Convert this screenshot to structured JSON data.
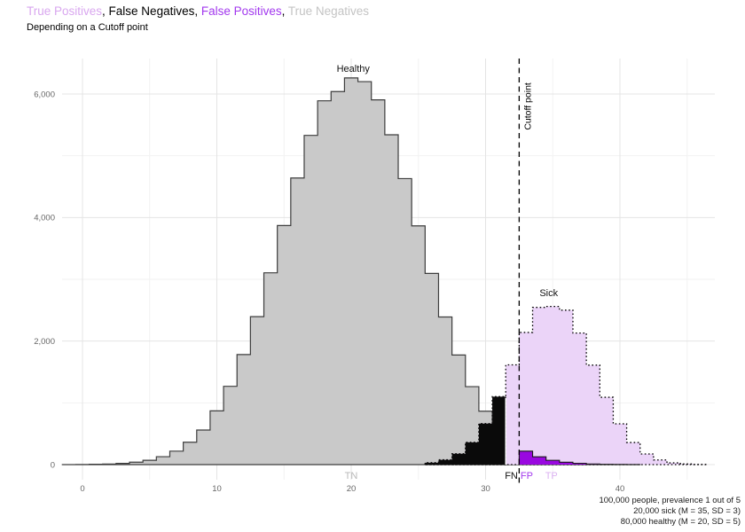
{
  "title": {
    "segments": [
      {
        "text": "True Positives",
        "color": "#D9A7EF"
      },
      {
        "text": ", ",
        "color": "#000000"
      },
      {
        "text": "False Negatives",
        "color": "#000000"
      },
      {
        "text": ", ",
        "color": "#000000"
      },
      {
        "text": "False Positives",
        "color": "#A238EE"
      },
      {
        "text": ", ",
        "color": "#000000"
      },
      {
        "text": "True Negatives",
        "color": "#C4C4C4"
      }
    ],
    "subtitle": "Depending on a Cutoff point"
  },
  "caption": {
    "lines": [
      "100,000 people, prevalence 1 out of 5",
      "20,000 sick (M = 35, SD = 3)",
      "80,000 healthy (M = 20, SD = 5)"
    ]
  },
  "chart_data": {
    "type": "area",
    "title": "True Positives, False Negatives, False Positives, True Negatives",
    "subtitle": "Depending on a Cutoff point",
    "x_axis": {
      "major_ticks": [
        0,
        10,
        20,
        30,
        40
      ],
      "labels": [
        "0",
        "10",
        "20",
        "30",
        "40"
      ],
      "minor_ticks": [
        5,
        15,
        25,
        35,
        45
      ],
      "range": [
        -1.5,
        46.5
      ]
    },
    "y_axis": {
      "major_ticks": [
        0,
        2000,
        4000,
        6000
      ],
      "labels": [
        "0",
        "2,000",
        "4,000",
        "6,000"
      ],
      "minor_ticks": [
        1000,
        3000,
        5000
      ],
      "range": [
        0,
        6590
      ]
    },
    "grid": true,
    "legend_position": "none",
    "cutoff": 32.5,
    "cutoff_label": "Cutoff point",
    "series": [
      {
        "name": "healthy",
        "label": "Healthy",
        "n": 80000,
        "mean": 20,
        "sd": 5,
        "bin_width": 1,
        "start_center": -1,
        "values": [
          1,
          3,
          5,
          10,
          20,
          40,
          70,
          128,
          218,
          362,
          560,
          870,
          1268,
          1782,
          2395,
          3105,
          3870,
          4640,
          5330,
          5890,
          6040,
          6260,
          6200,
          5905,
          5340,
          4630,
          3865,
          3095,
          2390,
          1775,
          1262,
          865,
          565,
          358,
          218,
          126,
          70,
          38,
          20,
          10,
          5,
          2,
          1
        ]
      },
      {
        "name": "sick",
        "label": "Sick",
        "n": 20000,
        "mean": 35,
        "sd": 3,
        "bin_width": 1,
        "start_center": 26,
        "values": [
          30,
          78,
          175,
          360,
          663,
          1100,
          1615,
          2140,
          2545,
          2560,
          2500,
          2130,
          1610,
          1090,
          660,
          358,
          172,
          75,
          28,
          10,
          3
        ]
      }
    ],
    "regions": {
      "tn": "True Negatives = healthy below cutoff",
      "fn": "False Negatives = sick below cutoff",
      "fp": "False Positives = healthy above cutoff",
      "tp": "True Positives = sick above cutoff"
    },
    "region_labels": [
      {
        "text": "TN",
        "color": "#B9B9B9",
        "x": 20,
        "anchor": "middle"
      },
      {
        "text": "FN",
        "color": "#111111",
        "x": 32.4,
        "anchor": "end"
      },
      {
        "text": "FP",
        "color": "#A238EE",
        "x": 32.6,
        "anchor": "start"
      },
      {
        "text": "TP",
        "color": "#DCB3F2",
        "x": 34.9,
        "anchor": "middle"
      }
    ],
    "annotations": [
      {
        "text": "Healthy",
        "x": 20.15,
        "y": 6360
      },
      {
        "text": "Sick",
        "x": 34.7,
        "y": 2730
      }
    ],
    "cutoff_label_y": 5800,
    "artifact_seam": {
      "x": 31.5,
      "top": 1080
    },
    "colors": {
      "healthy_fill": "#C9C9C9",
      "healthy_outline": "#3D3D3D",
      "sick_fill": "#EBD4F8",
      "sick_outline": "#000000",
      "fn_fill": "#0A0A0A",
      "fp_fill": "#9908E0",
      "fp_outline": "#1A1A1A",
      "grid_major": "#E4E4E4",
      "grid_minor": "#F1F1F1",
      "tick_label": "#666666",
      "cutoff_line": "#000000",
      "annotation_text": "#111111",
      "seam": "#FFFFFF"
    }
  }
}
